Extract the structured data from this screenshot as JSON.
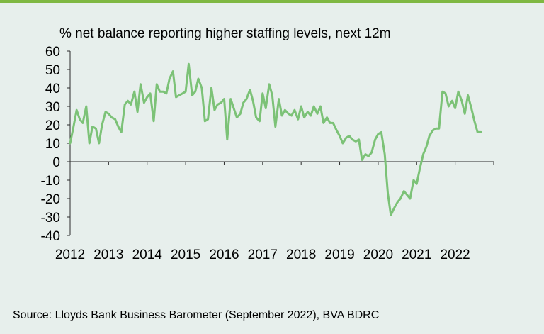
{
  "chart_data": {
    "type": "line",
    "title": "",
    "ylabel": "% net balance reporting higher staffing levels, next 12m",
    "xlabel": "",
    "ylim": [
      -40,
      60
    ],
    "yticks": [
      60,
      50,
      40,
      30,
      20,
      10,
      0,
      -10,
      -20,
      -30,
      -40
    ],
    "xlim": [
      2012.0,
      2023.0
    ],
    "xtick_labels": [
      "2012",
      "2013",
      "2014",
      "2015",
      "2016",
      "2017",
      "2018",
      "2019",
      "2020",
      "2021",
      "2022"
    ],
    "grid": false,
    "legend": "none",
    "series": [
      {
        "color": "#7cc277",
        "x": [
          2012.0,
          2012.08,
          2012.17,
          2012.25,
          2012.33,
          2012.42,
          2012.5,
          2012.58,
          2012.67,
          2012.75,
          2012.83,
          2012.92,
          2013.0,
          2013.08,
          2013.17,
          2013.25,
          2013.33,
          2013.42,
          2013.5,
          2013.58,
          2013.67,
          2013.75,
          2013.83,
          2013.92,
          2014.0,
          2014.08,
          2014.17,
          2014.25,
          2014.33,
          2014.42,
          2014.5,
          2014.58,
          2014.67,
          2014.75,
          2014.83,
          2014.92,
          2015.0,
          2015.08,
          2015.17,
          2015.25,
          2015.33,
          2015.42,
          2015.5,
          2015.58,
          2015.67,
          2015.75,
          2015.83,
          2015.92,
          2016.0,
          2016.08,
          2016.17,
          2016.25,
          2016.33,
          2016.42,
          2016.5,
          2016.58,
          2016.67,
          2016.75,
          2016.83,
          2016.92,
          2017.0,
          2017.08,
          2017.17,
          2017.25,
          2017.33,
          2017.42,
          2017.5,
          2017.58,
          2017.67,
          2017.75,
          2017.83,
          2017.92,
          2018.0,
          2018.08,
          2018.17,
          2018.25,
          2018.33,
          2018.42,
          2018.5,
          2018.58,
          2018.67,
          2018.75,
          2018.83,
          2018.92,
          2019.0,
          2019.08,
          2019.17,
          2019.25,
          2019.33,
          2019.42,
          2019.5,
          2019.58,
          2019.67,
          2019.75,
          2019.83,
          2019.92,
          2020.0,
          2020.08,
          2020.17,
          2020.25,
          2020.33,
          2020.42,
          2020.5,
          2020.58,
          2020.67,
          2020.75,
          2020.83,
          2020.92,
          2021.0,
          2021.08,
          2021.17,
          2021.25,
          2021.33,
          2021.42,
          2021.5,
          2021.58,
          2021.67,
          2021.75,
          2021.83,
          2021.92,
          2022.0,
          2022.08,
          2022.17,
          2022.25,
          2022.33,
          2022.42,
          2022.5,
          2022.58,
          2022.67
        ],
        "y": [
          10,
          18,
          28,
          23,
          21,
          30,
          10,
          19,
          18,
          10,
          20,
          27,
          26,
          24,
          23,
          19,
          16,
          31,
          33,
          31,
          38,
          27,
          42,
          32,
          35,
          37,
          22,
          42,
          38,
          38,
          37,
          45,
          49,
          35,
          36,
          37,
          38,
          53,
          36,
          38,
          45,
          40,
          22,
          23,
          40,
          28,
          31,
          32,
          34,
          12,
          34,
          29,
          24,
          26,
          32,
          34,
          39,
          33,
          24,
          22,
          37,
          29,
          42,
          36,
          19,
          34,
          25,
          28,
          26,
          25,
          28,
          23,
          30,
          24,
          27,
          25,
          30,
          26,
          30,
          21,
          24,
          21,
          21,
          17,
          14,
          10,
          13,
          14,
          12,
          11,
          12,
          1,
          4,
          3,
          5,
          12,
          15,
          16,
          4,
          -17,
          -29,
          -25,
          -22,
          -20,
          -16,
          -18,
          -20,
          -10,
          -12,
          -4,
          4,
          8,
          14,
          17,
          18,
          18,
          38,
          37,
          30,
          33,
          29,
          38,
          33,
          26,
          36,
          29,
          22,
          16,
          16
        ]
      }
    ]
  },
  "source": "Source: Lloyds Bank Business Barometer (September 2022), BVA BDRC"
}
